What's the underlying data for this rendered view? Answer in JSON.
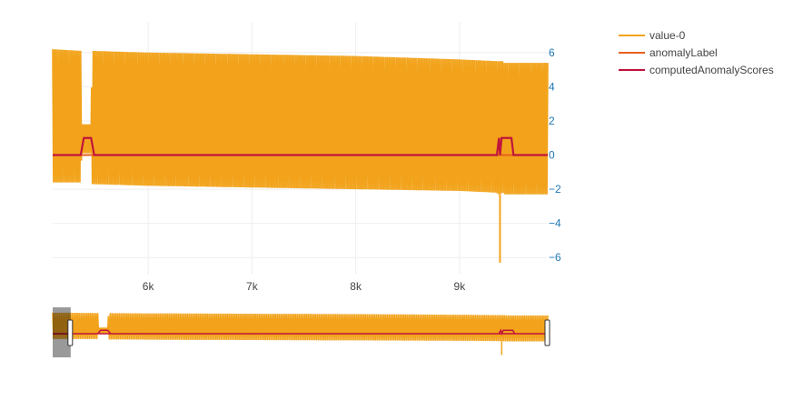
{
  "chart_data": {
    "type": "line",
    "title": "",
    "xlabel": "",
    "ylabel": "",
    "xlim": [
      5080,
      9850
    ],
    "ylim": [
      -7,
      7.8
    ],
    "grid": true,
    "legend_position": "top-right",
    "x_ticks": [
      6000,
      7000,
      8000,
      9000
    ],
    "x_tick_labels": [
      "6k",
      "7k",
      "8k",
      "9k"
    ],
    "y_ticks": [
      6,
      4,
      2,
      0,
      -2,
      -4,
      -6
    ],
    "y_tick_labels": [
      "6",
      "4",
      "2",
      "0",
      "−2",
      "−4",
      "−6"
    ],
    "series": [
      {
        "name": "value-0",
        "color": "#f2a31b",
        "envelope": {
          "x": [
            5080,
            5350,
            5360,
            5370,
            5440,
            5450,
            5460,
            6000,
            7000,
            8000,
            9000,
            9350,
            9380,
            9420,
            9430,
            9500,
            9850
          ],
          "upper": [
            6.2,
            6.1,
            1.8,
            1.8,
            1.8,
            1.8,
            6.1,
            6.0,
            5.9,
            5.8,
            5.6,
            5.5,
            5.5,
            5.5,
            5.4,
            5.4,
            5.4
          ],
          "lower": [
            -1.6,
            -1.6,
            0.1,
            0.1,
            0.1,
            0.1,
            -1.7,
            -1.8,
            -1.9,
            -2.0,
            -2.1,
            -2.2,
            -2.3,
            -2.2,
            -2.3,
            -2.3,
            -2.3
          ]
        },
        "spikes": [
          {
            "x": 9390,
            "y": -6.3
          }
        ]
      },
      {
        "name": "anomalyLabel",
        "color": "#e8601c",
        "x": [
          5080,
          9850
        ],
        "y": [
          0,
          0
        ]
      },
      {
        "name": "computedAnomalyScores",
        "color": "#c0143c",
        "x": [
          5080,
          5350,
          5380,
          5450,
          5480,
          9360,
          9380,
          9390,
          9405,
          9420,
          9500,
          9520,
          9850
        ],
        "y": [
          0,
          0,
          1.0,
          1.0,
          0,
          0,
          1.0,
          0,
          1.0,
          1.0,
          1.0,
          0,
          0
        ]
      }
    ],
    "rangeslider": {
      "visible": true,
      "full_range": [
        4900,
        9850
      ],
      "selected_range": [
        5080,
        9850
      ]
    }
  }
}
